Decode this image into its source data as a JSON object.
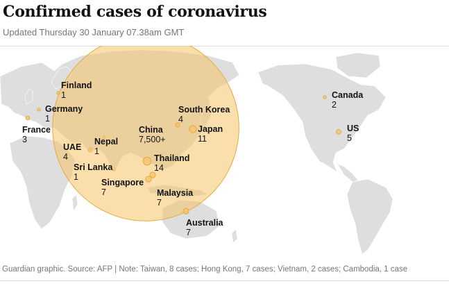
{
  "header": {
    "title": "Confirmed cases of coronavirus",
    "updated": "Updated Thursday 30 January 07.38am GMT"
  },
  "footer": {
    "source": "Guardian graphic. Source: AFP | Note: Taiwan, 8 cases; Hong Kong, 7 cases; Vietnam, 2 cases; Cambodia, 1 case"
  },
  "colors": {
    "land": "#dedede",
    "bubble": "#f5c46a",
    "bubble_stroke": "#e6a93a",
    "text": "#121212",
    "muted": "#767676"
  },
  "places": [
    {
      "id": "finland",
      "name": "Finland",
      "cases": "1"
    },
    {
      "id": "germany",
      "name": "Germany",
      "cases": "1"
    },
    {
      "id": "france",
      "name": "France",
      "cases": "3"
    },
    {
      "id": "uae",
      "name": "UAE",
      "cases": "4"
    },
    {
      "id": "nepal",
      "name": "Nepal",
      "cases": "1"
    },
    {
      "id": "sri-lanka",
      "name": "Sri Lanka",
      "cases": "1"
    },
    {
      "id": "china",
      "name": "China",
      "cases": "7,500+"
    },
    {
      "id": "south-korea",
      "name": "South Korea",
      "cases": "4"
    },
    {
      "id": "japan",
      "name": "Japan",
      "cases": "11"
    },
    {
      "id": "thailand",
      "name": "Thailand",
      "cases": "14"
    },
    {
      "id": "singapore",
      "name": "Singapore",
      "cases": "7"
    },
    {
      "id": "malaysia",
      "name": "Malaysia",
      "cases": "7"
    },
    {
      "id": "australia",
      "name": "Australia",
      "cases": "7"
    },
    {
      "id": "canada",
      "name": "Canada",
      "cases": "2"
    },
    {
      "id": "us",
      "name": "US",
      "cases": "5"
    }
  ]
}
